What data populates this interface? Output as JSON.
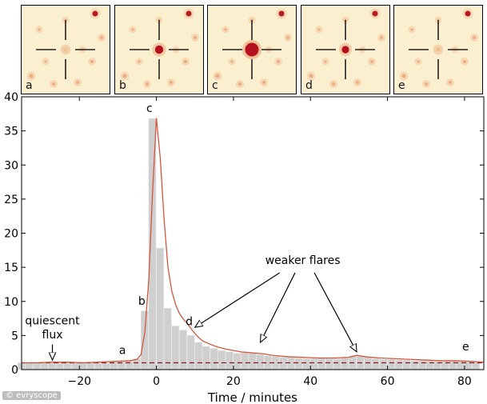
{
  "colors": {
    "bar": "#cfcfcf",
    "curve": "#d0573d",
    "baseline": "#8b1a1a",
    "panel_background": "#faefcf",
    "panel_hotspot": "#b3121c"
  },
  "panels": [
    {
      "label": "a",
      "flare_level": 0.05
    },
    {
      "label": "b",
      "flare_level": 0.45
    },
    {
      "label": "c",
      "flare_level": 1.0
    },
    {
      "label": "d",
      "flare_level": 0.35
    },
    {
      "label": "e",
      "flare_level": 0.04
    }
  ],
  "credit": "© evryscope",
  "chart_data": {
    "type": "bar",
    "xlabel": "Time / minutes",
    "ylabel": "",
    "xlim": [
      -35,
      85
    ],
    "ylim": [
      0,
      40
    ],
    "xticks": [
      -20,
      0,
      20,
      40,
      60,
      80
    ],
    "yticks": [
      0,
      5,
      10,
      15,
      20,
      25,
      30,
      35,
      40
    ],
    "bar_width": 2,
    "x": [
      -35,
      -33,
      -31,
      -29,
      -27,
      -25,
      -23,
      -21,
      -19,
      -17,
      -15,
      -13,
      -11,
      -9,
      -7,
      -5,
      -3,
      -1,
      1,
      3,
      5,
      7,
      9,
      11,
      13,
      15,
      17,
      19,
      21,
      23,
      25,
      27,
      29,
      31,
      33,
      35,
      37,
      39,
      41,
      43,
      45,
      47,
      49,
      51,
      53,
      55,
      57,
      59,
      61,
      63,
      65,
      67,
      69,
      71,
      73,
      75,
      77,
      79,
      81,
      83
    ],
    "values": [
      1.0,
      1.0,
      1.0,
      1.1,
      1.0,
      1.0,
      1.1,
      1.0,
      1.0,
      1.1,
      1.0,
      1.0,
      1.2,
      1.2,
      1.3,
      1.6,
      8.6,
      36.8,
      17.8,
      9.0,
      6.4,
      5.8,
      5.0,
      4.0,
      3.4,
      3.1,
      2.8,
      2.6,
      2.4,
      2.5,
      2.4,
      2.2,
      2.0,
      1.9,
      1.8,
      1.8,
      1.7,
      1.6,
      1.6,
      1.7,
      1.6,
      1.6,
      1.7,
      2.0,
      1.9,
      1.8,
      1.6,
      1.5,
      1.5,
      1.4,
      1.4,
      1.3,
      1.3,
      1.3,
      1.2,
      1.2,
      1.3,
      1.2,
      1.2,
      1.1
    ],
    "curve": {
      "x": [
        -35,
        -31,
        -27,
        -23,
        -19,
        -15,
        -11,
        -7,
        -5,
        -4,
        -3,
        -2,
        -1,
        0,
        1,
        2,
        3,
        4,
        5,
        6,
        7,
        8,
        9,
        10,
        11,
        12,
        14,
        16,
        18,
        20,
        22,
        24,
        26,
        28,
        30,
        34,
        38,
        42,
        46,
        50,
        52,
        54,
        58,
        62,
        66,
        70,
        74,
        78,
        82,
        85
      ],
      "y": [
        1.0,
        1.0,
        1.1,
        1.1,
        1.0,
        1.1,
        1.2,
        1.3,
        1.5,
        2.2,
        5.5,
        13.0,
        26.0,
        36.9,
        31.0,
        22.0,
        15.0,
        11.5,
        9.5,
        8.2,
        7.4,
        6.8,
        6.0,
        5.3,
        4.7,
        4.2,
        3.7,
        3.3,
        3.0,
        2.8,
        2.6,
        2.5,
        2.4,
        2.3,
        2.1,
        1.9,
        1.8,
        1.7,
        1.7,
        1.8,
        2.1,
        1.9,
        1.7,
        1.6,
        1.5,
        1.4,
        1.3,
        1.3,
        1.2,
        1.1
      ]
    },
    "quiescent_level": 1.0,
    "point_labels": [
      {
        "text": "c",
        "x": -1.8,
        "y": 37.8
      },
      {
        "text": "b",
        "x": -3.8,
        "y": 9.5
      },
      {
        "text": "d",
        "x": 8.5,
        "y": 6.5
      },
      {
        "text": "a",
        "x": -8.8,
        "y": 2.3
      },
      {
        "text": "e",
        "x": 80.3,
        "y": 2.8
      }
    ],
    "annotations": [
      {
        "text": "weaker flares",
        "x": 38,
        "y": 15.5
      },
      {
        "text": "quiescent",
        "x": -27,
        "y": 6.6
      },
      {
        "text": "flux",
        "x": -27,
        "y": 4.6
      }
    ],
    "arrows": [
      {
        "from": [
          32,
          14.2
        ],
        "to": [
          10,
          6.2
        ]
      },
      {
        "from": [
          36,
          14.2
        ],
        "to": [
          27,
          4.0
        ]
      },
      {
        "from": [
          41,
          14.2
        ],
        "to": [
          52,
          2.6
        ]
      },
      {
        "from": [
          -27,
          3.7
        ],
        "to": [
          -27,
          1.4
        ]
      }
    ]
  }
}
